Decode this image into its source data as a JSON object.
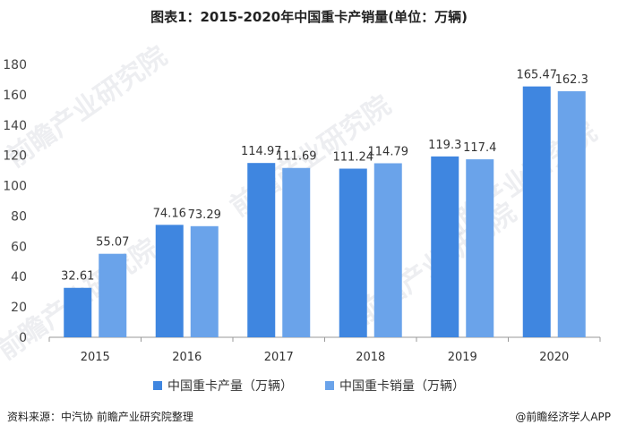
{
  "title": "图表1：2015-2020年中国重卡产销量(单位：万辆)",
  "source": "资料来源：中汽协 前瞻产业研究院整理",
  "credit": "@前瞻经济学人APP",
  "watermark": "前瞻产业研究院",
  "colors": {
    "production": "#3f86e0",
    "sales": "#6aa3ea",
    "axis": "#999999"
  },
  "chart_data": {
    "type": "bar",
    "categories": [
      "2015",
      "2016",
      "2017",
      "2018",
      "2019",
      "2020"
    ],
    "series": [
      {
        "name": "中国重卡产量（万辆）",
        "values": [
          32.61,
          74.16,
          114.97,
          111.24,
          119.3,
          165.47
        ]
      },
      {
        "name": "中国重卡销量（万辆）",
        "values": [
          55.07,
          73.29,
          111.69,
          114.79,
          117.4,
          162.3
        ]
      }
    ],
    "value_labels": [
      [
        "32.61",
        "74.16",
        "114.97",
        "111.24",
        "119.3",
        "165.47"
      ],
      [
        "55.07",
        "73.29",
        "111.69",
        "114.79",
        "117.4",
        "162.3"
      ]
    ],
    "ylim": [
      0,
      180
    ],
    "yticks": [
      "0",
      "20",
      "40",
      "60",
      "80",
      "100",
      "120",
      "140",
      "160",
      "180"
    ],
    "grid": false,
    "legend_position": "bottom"
  }
}
